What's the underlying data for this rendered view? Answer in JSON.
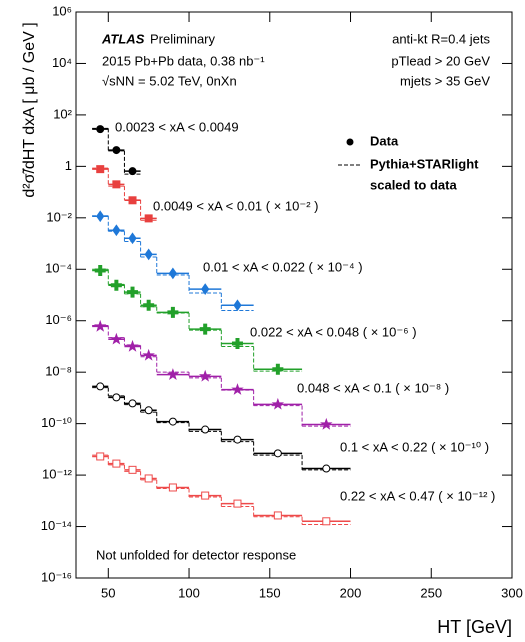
{
  "chart_data": {
    "type": "step-scatter",
    "y_label": "d²σ̃/dHT dxA [ μb / GeV ]",
    "x_label": "HT [GeV]",
    "header": {
      "experiment": "ATLAS",
      "status": "Preliminary",
      "dataset": "2015 Pb+Pb data, 0.38 nb⁻¹",
      "energy": "√sNN = 5.02 TeV, 0nXn",
      "jets": "anti-kt R=0.4 jets",
      "cut_pt": "pTlead > 20 GeV",
      "cut_m": "mjets > 35 GeV"
    },
    "legend": [
      "Data",
      "Pythia+STARlight",
      "scaled to data"
    ],
    "footnote": "Not unfolded for detector response",
    "log_y": true,
    "xlim": [
      30,
      300
    ],
    "xticks": [
      50,
      100,
      150,
      200,
      250,
      300
    ],
    "ylim": [
      1e-16,
      1000000.0
    ],
    "yticks": [
      {
        "value": 1e-16,
        "label": "10⁻¹⁶"
      },
      {
        "value": 1e-14,
        "label": "10⁻¹⁴"
      },
      {
        "value": 1e-12,
        "label": "10⁻¹²"
      },
      {
        "value": 1e-10,
        "label": "10⁻¹⁰"
      },
      {
        "value": 1e-08,
        "label": "10⁻⁸"
      },
      {
        "value": 1e-06,
        "label": "10⁻⁶"
      },
      {
        "value": 0.0001,
        "label": "10⁻⁴"
      },
      {
        "value": 0.01,
        "label": "10⁻²"
      },
      1,
      {
        "value": 100,
        "label": "10²"
      },
      {
        "value": 10000,
        "label": "10⁴"
      },
      {
        "value": 1000000,
        "label": "10⁶"
      }
    ],
    "series": [
      {
        "name": "0.0023 < xA < 0.0049",
        "color": "#000000",
        "marker": "circle",
        "bins": [
          40,
          50,
          60,
          70
        ],
        "values": [
          28,
          4.3,
          0.65
        ],
        "mc": [
          30,
          4,
          0.5
        ]
      },
      {
        "name": "0.0049 < xA < 0.01 ( × 10⁻² )",
        "color": "#e8403f",
        "marker": "square",
        "bins": [
          40,
          50,
          60,
          70,
          80
        ],
        "values": [
          0.78,
          0.2,
          0.048,
          0.0095
        ],
        "mc": [
          0.85,
          0.17,
          0.05,
          0.008
        ]
      },
      {
        "name": "0.01 < xA < 0.022 ( × 10⁻⁴ )",
        "color": "#1f78d8",
        "marker": "diamond",
        "bins": [
          40,
          50,
          60,
          70,
          80,
          100,
          120,
          140
        ],
        "values": [
          0.0115,
          0.0033,
          0.0016,
          0.00038,
          6.9e-05,
          1.7e-05,
          4e-06
        ],
        "mc": [
          0.012,
          0.003,
          0.0012,
          0.0003,
          6e-05,
          1.2e-05,
          2.5e-06
        ]
      },
      {
        "name": "0.022 < xA < 0.048 ( × 10⁻⁶ )",
        "color": "#22a02a",
        "marker": "cross",
        "bins": [
          40,
          50,
          60,
          70,
          80,
          100,
          120,
          140,
          170
        ],
        "values": [
          9e-05,
          2.4e-05,
          1.3e-05,
          4e-06,
          2.1e-06,
          4.7e-07,
          1.3e-07,
          1.3e-08
        ],
        "mc": [
          0.0001,
          2.6e-05,
          1.1e-05,
          3.5e-06,
          2e-06,
          4.3e-07,
          1e-07,
          1.1e-08
        ]
      },
      {
        "name": "0.048 < xA < 0.1 ( × 10⁻⁸ )",
        "color": "#a020a8",
        "marker": "star",
        "bins": [
          40,
          50,
          60,
          70,
          80,
          100,
          120,
          140,
          170,
          200
        ],
        "values": [
          6e-07,
          1.9e-07,
          1e-07,
          4.5e-08,
          8e-09,
          6.9e-09,
          2.1e-09,
          5.6e-10,
          9.3e-11
        ],
        "mc": [
          6.5e-07,
          2.2e-07,
          1.1e-07,
          4e-08,
          1e-08,
          6e-09,
          2e-09,
          5e-10,
          8e-11
        ]
      },
      {
        "name": "0.1 < xA < 0.22 ( × 10⁻¹⁰ )",
        "color": "#000000",
        "marker": "open-circle",
        "bins": [
          40,
          50,
          60,
          70,
          80,
          100,
          120,
          140,
          170,
          200
        ],
        "values": [
          2.8e-09,
          1.05e-09,
          6.1e-10,
          3.3e-10,
          1.2e-10,
          5.9e-11,
          2.4e-11,
          7e-12,
          1.8e-12
        ],
        "mc": [
          2.5e-09,
          1.2e-09,
          5.5e-10,
          2.8e-10,
          1.1e-10,
          5e-11,
          2e-11,
          6e-12,
          1.6e-12
        ]
      },
      {
        "name": "0.22 < xA < 0.47 ( × 10⁻¹² )",
        "color": "#ee4a4a",
        "marker": "open-square",
        "bins": [
          40,
          50,
          60,
          70,
          80,
          100,
          120,
          140,
          170,
          200
        ],
        "values": [
          5.3e-12,
          2.8e-12,
          1.6e-12,
          7.4e-13,
          3.3e-13,
          1.6e-13,
          7.8e-14,
          2.7e-14,
          1.6e-14
        ],
        "mc": [
          6e-12,
          2.5e-12,
          1.4e-12,
          6.5e-13,
          3e-13,
          1.4e-13,
          6e-14,
          2.4e-14,
          1.2e-14
        ]
      }
    ]
  }
}
